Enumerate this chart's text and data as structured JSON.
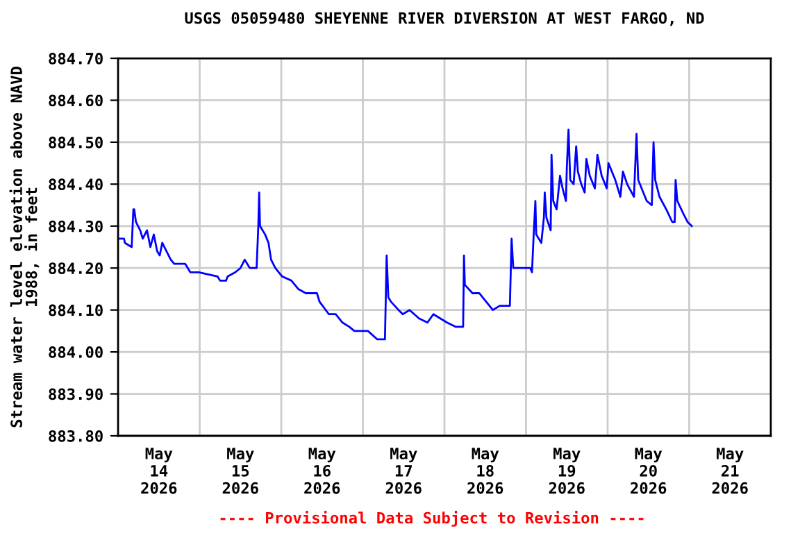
{
  "chart_data": {
    "type": "line",
    "title": "USGS 05059480 SHEYENNE RIVER DIVERSION AT WEST FARGO, ND",
    "ylabel": "Stream water level elevation above NAVD\n1988, in feet",
    "annotations": [
      "---- Provisional Data Subject to Revision ----"
    ],
    "x": [
      "2026-05-14T00:30",
      "2026-05-14T01:45",
      "2026-05-14T02:00",
      "2026-05-14T04:00",
      "2026-05-14T04:30",
      "2026-05-14T04:45",
      "2026-05-14T05:15",
      "2026-05-14T06:30",
      "2026-05-14T07:15",
      "2026-05-14T08:30",
      "2026-05-14T09:30",
      "2026-05-14T10:30",
      "2026-05-14T11:30",
      "2026-05-14T12:15",
      "2026-05-14T13:00",
      "2026-05-14T14:15",
      "2026-05-14T15:30",
      "2026-05-14T16:30",
      "2026-05-14T19:45",
      "2026-05-14T21:15",
      "2026-05-14T23:45",
      "2026-05-15T05:15",
      "2026-05-15T06:00",
      "2026-05-15T07:45",
      "2026-05-15T08:15",
      "2026-05-15T10:30",
      "2026-05-15T12:00",
      "2026-05-15T13:15",
      "2026-05-15T14:45",
      "2026-05-15T16:45",
      "2026-05-15T17:15",
      "2026-05-15T17:30",
      "2026-05-15T17:45",
      "2026-05-15T19:15",
      "2026-05-15T20:15",
      "2026-05-15T21:00",
      "2026-05-15T22:15",
      "2026-05-16T00:15",
      "2026-05-16T03:00",
      "2026-05-16T05:00",
      "2026-05-16T07:15",
      "2026-05-16T10:30",
      "2026-05-16T11:15",
      "2026-05-16T14:00",
      "2026-05-16T16:00",
      "2026-05-16T18:00",
      "2026-05-16T20:00",
      "2026-05-16T21:30",
      "2026-05-17T01:30",
      "2026-05-17T04:15",
      "2026-05-17T06:30",
      "2026-05-17T07:00",
      "2026-05-17T07:30",
      "2026-05-17T08:15",
      "2026-05-17T10:30",
      "2026-05-17T11:45",
      "2026-05-17T13:45",
      "2026-05-17T16:30",
      "2026-05-17T19:00",
      "2026-05-17T20:45",
      "2026-05-18T00:45",
      "2026-05-18T03:15",
      "2026-05-18T05:30",
      "2026-05-18T05:45",
      "2026-05-18T06:00",
      "2026-05-18T08:15",
      "2026-05-18T10:15",
      "2026-05-18T12:15",
      "2026-05-18T14:15",
      "2026-05-18T16:15",
      "2026-05-18T19:15",
      "2026-05-18T19:30",
      "2026-05-18T19:45",
      "2026-05-18T20:15",
      "2026-05-19T01:15",
      "2026-05-19T01:45",
      "2026-05-19T02:15",
      "2026-05-19T02:45",
      "2026-05-19T03:00",
      "2026-05-19T04:30",
      "2026-05-19T05:15",
      "2026-05-19T05:30",
      "2026-05-19T06:00",
      "2026-05-19T07:15",
      "2026-05-19T07:30",
      "2026-05-19T08:00",
      "2026-05-19T09:00",
      "2026-05-19T10:00",
      "2026-05-19T10:45",
      "2026-05-19T11:45",
      "2026-05-19T12:00",
      "2026-05-19T12:30",
      "2026-05-19T13:00",
      "2026-05-19T14:00",
      "2026-05-19T14:45",
      "2026-05-19T15:15",
      "2026-05-19T16:15",
      "2026-05-19T17:15",
      "2026-05-19T17:45",
      "2026-05-19T18:45",
      "2026-05-19T20:15",
      "2026-05-19T21:00",
      "2026-05-19T22:15",
      "2026-05-19T23:45",
      "2026-05-20T00:15",
      "2026-05-20T02:15",
      "2026-05-20T03:45",
      "2026-05-20T04:30",
      "2026-05-20T05:45",
      "2026-05-20T07:45",
      "2026-05-20T08:30",
      "2026-05-20T09:00",
      "2026-05-20T10:30",
      "2026-05-20T11:30",
      "2026-05-20T13:00",
      "2026-05-20T13:30",
      "2026-05-20T14:00",
      "2026-05-20T15:15",
      "2026-05-20T17:15",
      "2026-05-20T19:00",
      "2026-05-20T19:45",
      "2026-05-20T20:00",
      "2026-05-20T20:30",
      "2026-05-20T22:15",
      "2026-05-20T23:30",
      "2026-05-21T00:45"
    ],
    "series": [
      {
        "color": "#0000ff",
        "values": [
          884.27,
          884.27,
          884.26,
          884.25,
          884.34,
          884.34,
          884.31,
          884.29,
          884.27,
          884.29,
          884.25,
          884.28,
          884.24,
          884.23,
          884.26,
          884.24,
          884.22,
          884.21,
          884.21,
          884.19,
          884.19,
          884.18,
          884.17,
          884.17,
          884.18,
          884.19,
          884.2,
          884.22,
          884.2,
          884.2,
          884.3,
          884.38,
          884.3,
          884.28,
          884.26,
          884.22,
          884.2,
          884.18,
          884.17,
          884.15,
          884.14,
          884.14,
          884.12,
          884.09,
          884.09,
          884.07,
          884.06,
          884.05,
          884.05,
          884.03,
          884.03,
          884.23,
          884.13,
          884.12,
          884.1,
          884.09,
          884.1,
          884.08,
          884.07,
          884.09,
          884.07,
          884.06,
          884.06,
          884.23,
          884.16,
          884.14,
          884.14,
          884.12,
          884.1,
          884.11,
          884.11,
          884.19,
          884.27,
          884.2,
          884.2,
          884.19,
          884.28,
          884.36,
          884.28,
          884.26,
          884.32,
          884.38,
          884.32,
          884.29,
          884.47,
          884.36,
          884.34,
          884.42,
          884.39,
          884.36,
          884.44,
          884.53,
          884.41,
          884.4,
          884.49,
          884.43,
          884.4,
          884.38,
          884.46,
          884.42,
          884.39,
          884.47,
          884.42,
          884.39,
          884.45,
          884.41,
          884.37,
          884.43,
          884.4,
          884.37,
          884.52,
          884.41,
          884.38,
          884.36,
          884.35,
          884.5,
          884.41,
          884.37,
          884.34,
          884.31,
          884.31,
          884.41,
          884.36,
          884.33,
          884.31,
          884.3
        ]
      }
    ],
    "xlim": [
      "2026-05-14T00:00",
      "2026-05-22T00:00"
    ],
    "xticks": [
      {
        "value": "2026-05-14T12:00",
        "label": "May\n14\n2026"
      },
      {
        "value": "2026-05-15T12:00",
        "label": "May\n15\n2026"
      },
      {
        "value": "2026-05-16T12:00",
        "label": "May\n16\n2026"
      },
      {
        "value": "2026-05-17T12:00",
        "label": "May\n17\n2026"
      },
      {
        "value": "2026-05-18T12:00",
        "label": "May\n18\n2026"
      },
      {
        "value": "2026-05-19T12:00",
        "label": "May\n19\n2026"
      },
      {
        "value": "2026-05-20T12:00",
        "label": "May\n20\n2026"
      },
      {
        "value": "2026-05-21T12:00",
        "label": "May\n21\n2026"
      },
      {
        "value": "2026-05-15",
        "label": null
      },
      {
        "value": "2026-05-16",
        "label": null
      },
      {
        "value": "2026-05-17",
        "label": null
      },
      {
        "value": "2026-05-18",
        "label": null
      },
      {
        "value": "2026-05-19",
        "label": null
      },
      {
        "value": "2026-05-20",
        "label": null
      },
      {
        "value": "2026-05-21",
        "label": null
      }
    ],
    "ylim": [
      883.8,
      884.7
    ],
    "yticks": [
      {
        "value": 883.8,
        "label": "883.80"
      },
      {
        "value": 883.9,
        "label": "883.90"
      },
      {
        "value": 884.0,
        "label": "884.00"
      },
      {
        "value": 884.1,
        "label": "884.10"
      },
      {
        "value": 884.2,
        "label": "884.20"
      },
      {
        "value": 884.3,
        "label": "884.30"
      },
      {
        "value": 884.4,
        "label": "884.40"
      },
      {
        "value": 884.5,
        "label": "884.50"
      },
      {
        "value": 884.6,
        "label": "884.60"
      },
      {
        "value": 884.7,
        "label": "884.70"
      }
    ],
    "grid": true
  }
}
